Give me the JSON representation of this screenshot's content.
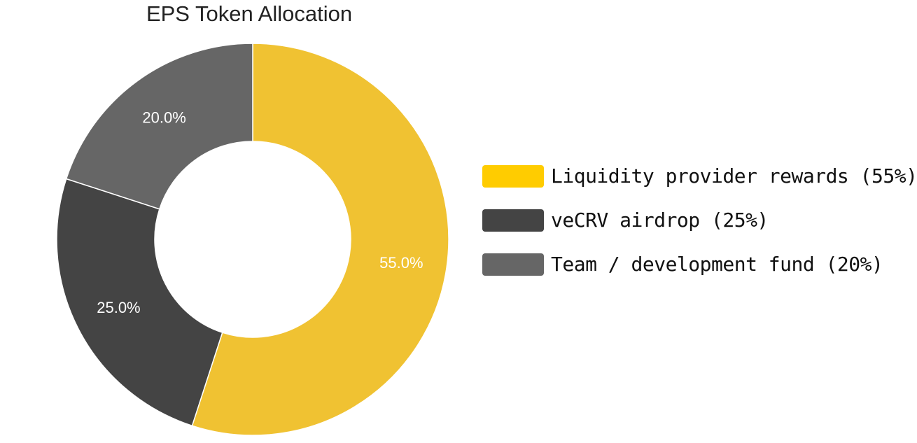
{
  "chart_data": {
    "type": "pie",
    "variant": "donut",
    "title": "EPS Token Allocation",
    "slices": [
      {
        "value": 55.0,
        "label": "55.0%",
        "color": "#F0C232"
      },
      {
        "value": 25.0,
        "label": "25.0%",
        "color": "#444444"
      },
      {
        "value": 20.0,
        "label": "20.0%",
        "color": "#666666"
      }
    ],
    "legend": {
      "placement": "right",
      "items": [
        {
          "text": "Liquidity provider rewards (55%)",
          "color": "#FFCC00"
        },
        {
          "text": "veCRV airdrop (25%)",
          "color": "#444444"
        },
        {
          "text": "Team / development fund (20%)",
          "color": "#666666"
        }
      ]
    }
  }
}
